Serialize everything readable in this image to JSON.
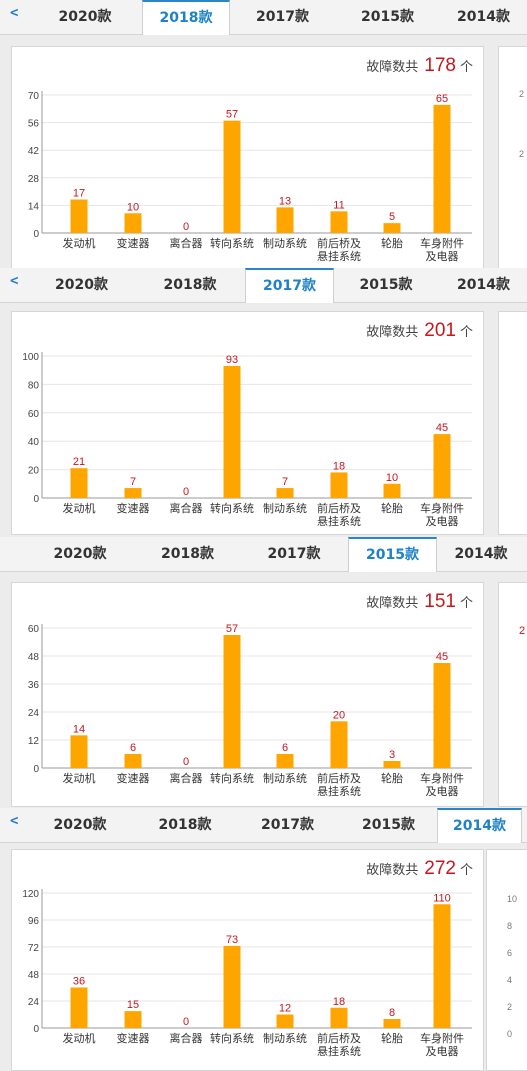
{
  "tabs": [
    "2020款",
    "2018款",
    "2017款",
    "2015款",
    "2014款"
  ],
  "back_label": "<",
  "summary": {
    "label": "故障数共",
    "unit": "个"
  },
  "categories": [
    "发动机",
    "变速器",
    "离合器",
    "转向系统",
    "制动系统",
    "前后桥及悬挂系统",
    "轮胎",
    "车身附件及电器"
  ],
  "colors": {
    "bar": "#ffa500",
    "value_label": "#c8161d",
    "active_tab": "#1e82c8"
  },
  "panels": [
    {
      "active_tab": "2018款",
      "total": "178",
      "ticks": [
        "0",
        "14",
        "28",
        "42",
        "56",
        "70"
      ]
    },
    {
      "active_tab": "2017款",
      "total": "201",
      "ticks": [
        "0",
        "20",
        "40",
        "60",
        "80",
        "100"
      ]
    },
    {
      "active_tab": "2015款",
      "total": "151",
      "ticks": [
        "0",
        "12",
        "24",
        "36",
        "48",
        "60"
      ]
    },
    {
      "active_tab": "2014款",
      "total": "272",
      "ticks": [
        "0",
        "24",
        "48",
        "72",
        "96",
        "120"
      ]
    }
  ],
  "side_ticks": [
    [
      "2",
      "2"
    ],
    [],
    [
      "2"
    ],
    [
      "10",
      "8",
      "6",
      "4",
      "2",
      "0"
    ]
  ],
  "chart_data": [
    {
      "type": "bar",
      "title": "2018款",
      "categories": [
        "发动机",
        "变速器",
        "离合器",
        "转向系统",
        "制动系统",
        "前后桥及悬挂系统",
        "轮胎",
        "车身附件及电器"
      ],
      "values": [
        17,
        10,
        0,
        57,
        13,
        11,
        5,
        65
      ],
      "ylim": [
        0,
        70
      ]
    },
    {
      "type": "bar",
      "title": "2017款",
      "categories": [
        "发动机",
        "变速器",
        "离合器",
        "转向系统",
        "制动系统",
        "前后桥及悬挂系统",
        "轮胎",
        "车身附件及电器"
      ],
      "values": [
        21,
        7,
        0,
        93,
        7,
        18,
        10,
        45
      ],
      "ylim": [
        0,
        100
      ]
    },
    {
      "type": "bar",
      "title": "2015款",
      "categories": [
        "发动机",
        "变速器",
        "离合器",
        "转向系统",
        "制动系统",
        "前后桥及悬挂系统",
        "轮胎",
        "车身附件及电器"
      ],
      "values": [
        14,
        6,
        0,
        57,
        6,
        20,
        3,
        45
      ],
      "ylim": [
        0,
        60
      ]
    },
    {
      "type": "bar",
      "title": "2014款",
      "categories": [
        "发动机",
        "变速器",
        "离合器",
        "转向系统",
        "制动系统",
        "前后桥及悬挂系统",
        "轮胎",
        "车身附件及电器"
      ],
      "values": [
        36,
        15,
        0,
        73,
        12,
        18,
        8,
        110
      ],
      "ylim": [
        0,
        120
      ]
    }
  ]
}
